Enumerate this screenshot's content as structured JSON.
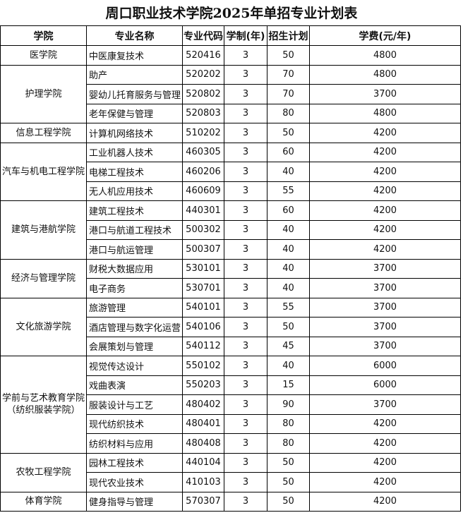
{
  "title": "周口职业技术学院2025年单招专业计划表",
  "headers": [
    "学院",
    "专业名称",
    "专业代码",
    "学制(年)",
    "招生计划",
    "学费(元/年)"
  ],
  "groups": [
    {
      "college": "医学院",
      "rows": [
        [
          "中医康复技术",
          "520416",
          "3",
          "50",
          "4800"
        ]
      ]
    },
    {
      "college": "护理学院",
      "rows": [
        [
          "助产",
          "520202",
          "3",
          "70",
          "4800"
        ],
        [
          "婴幼儿托育服务与管理",
          "520802",
          "3",
          "70",
          "3700"
        ],
        [
          "老年保健与管理",
          "520803",
          "3",
          "80",
          "4800"
        ]
      ]
    },
    {
      "college": "信息工程学院",
      "rows": [
        [
          "计算机网络技术",
          "510202",
          "3",
          "50",
          "4200"
        ]
      ]
    },
    {
      "college": "汽车与机电工程学院",
      "rows": [
        [
          "工业机器人技术",
          "460305",
          "3",
          "60",
          "4200"
        ],
        [
          "电梯工程技术",
          "460206",
          "3",
          "40",
          "4200"
        ],
        [
          "无人机应用技术",
          "460609",
          "3",
          "55",
          "4200"
        ]
      ]
    },
    {
      "college": "建筑与港航学院",
      "rows": [
        [
          "建筑工程技术",
          "440301",
          "3",
          "60",
          "4200"
        ],
        [
          "港口与航道工程技术",
          "500302",
          "3",
          "40",
          "4200"
        ],
        [
          "港口与航运管理",
          "500307",
          "3",
          "40",
          "4200"
        ]
      ]
    },
    {
      "college": "经济与管理学院",
      "rows": [
        [
          "财税大数据应用",
          "530101",
          "3",
          "40",
          "3700"
        ],
        [
          "电子商务",
          "530701",
          "3",
          "40",
          "3700"
        ]
      ]
    },
    {
      "college": "文化旅游学院",
      "rows": [
        [
          "旅游管理",
          "540101",
          "3",
          "55",
          "3700"
        ],
        [
          "酒店管理与数字化运营",
          "540106",
          "3",
          "50",
          "3700"
        ],
        [
          "会展策划与管理",
          "540112",
          "3",
          "45",
          "3700"
        ]
      ]
    },
    {
      "college": "学前与艺术教育学院",
      "college_sub": "（纺织服装学院）",
      "rows": [
        [
          "视觉传达设计",
          "550102",
          "3",
          "40",
          "6000"
        ],
        [
          "戏曲表演",
          "550203",
          "3",
          "15",
          "6000"
        ],
        [
          "服装设计与工艺",
          "480402",
          "3",
          "90",
          "3700"
        ],
        [
          "现代纺织技术",
          "480401",
          "3",
          "80",
          "4200"
        ],
        [
          "纺织材料与应用",
          "480408",
          "3",
          "80",
          "4200"
        ]
      ]
    },
    {
      "college": "农牧工程学院",
      "rows": [
        [
          "园林工程技术",
          "440104",
          "3",
          "50",
          "4200"
        ],
        [
          "现代农业技术",
          "410103",
          "3",
          "50",
          "4200"
        ]
      ]
    },
    {
      "college": "体育学院",
      "rows": [
        [
          "健身指导与管理",
          "570307",
          "3",
          "50",
          "4200"
        ]
      ]
    }
  ]
}
